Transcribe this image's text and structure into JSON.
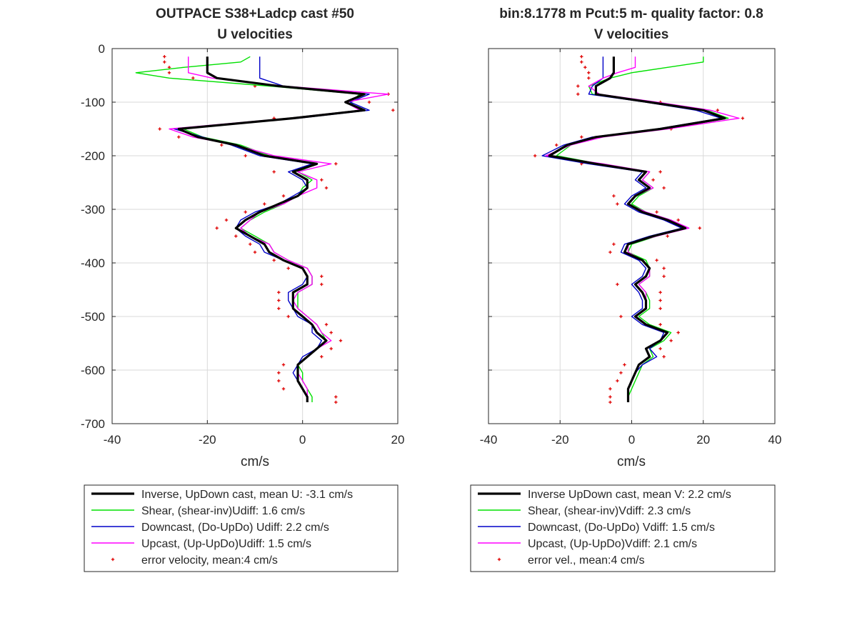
{
  "figure": {
    "left_title_line1": "OUTPACE S38+Ladcp cast #50",
    "left_title_line2": "U velocities",
    "right_title_line1": "bin:8.1778 m  Pcut:5 m- quality factor:  0.8",
    "right_title_line2": "V velocities"
  },
  "colors": {
    "inverse": "#000000",
    "shear": "#00e000",
    "downcast": "#0000c8",
    "upcast": "#ff00ff",
    "error": "#e00000",
    "grid": "#d9d9d9",
    "axes": "#262626"
  },
  "chart_data": [
    {
      "type": "line",
      "title": "OUTPACE S38+Ladcp cast #50 U velocities",
      "xlabel": "cm/s",
      "ylabel": "",
      "xlim": [
        -40,
        20
      ],
      "ylim": [
        -700,
        0
      ],
      "xticks": [
        -40,
        -20,
        0,
        20
      ],
      "yticks": [
        0,
        -100,
        -200,
        -300,
        -400,
        -500,
        -600,
        -700
      ],
      "grid": true,
      "legend_position": "below",
      "depth": [
        -15,
        -25,
        -35,
        -45,
        -55,
        -70,
        -85,
        -100,
        -115,
        -130,
        -150,
        -165,
        -180,
        -200,
        -215,
        -230,
        -245,
        -260,
        -275,
        -290,
        -305,
        -320,
        -335,
        -350,
        -365,
        -380,
        -395,
        -410,
        -425,
        -440,
        -455,
        -470,
        -485,
        -500,
        -515,
        -530,
        -545,
        -560,
        -575,
        -590,
        -605,
        -620,
        -635,
        -650,
        -660
      ],
      "series": [
        {
          "name": "Inverse, UpDown cast, mean U:  -3.1 cm/s",
          "values": [
            -20,
            -20,
            -20,
            -20,
            -18,
            -5,
            13,
            9,
            13,
            -2,
            -26,
            -22,
            -14,
            -8,
            3,
            -2,
            1,
            1,
            -1,
            -5,
            -9,
            -12,
            -14,
            -11,
            -8,
            -7,
            -4,
            0,
            1,
            1,
            -2,
            -2,
            -2,
            0,
            2,
            3,
            5,
            3,
            1,
            -1,
            -1,
            -1,
            0,
            1,
            1
          ]
        },
        {
          "name": "Shear, (shear-inv)Udiff:  1.6 cm/s",
          "values": [
            -11,
            -13,
            -25,
            -35,
            -28,
            -7,
            12,
            10,
            12,
            -3,
            -25,
            -21,
            -13,
            -7,
            3,
            -1,
            2,
            0,
            -1,
            -4,
            -8,
            -11,
            -13,
            -10,
            -7,
            -6,
            -3,
            1,
            2,
            2,
            -1,
            -1,
            -1,
            1,
            3,
            4,
            5,
            3,
            1,
            -1,
            0,
            0,
            1,
            2,
            2
          ]
        },
        {
          "name": "Downcast, (Do-UpDo) Udiff:  2.2 cm/s",
          "values": [
            -9,
            -9,
            -9,
            -9,
            -9,
            -4,
            14,
            10,
            14,
            -1,
            -27,
            -21,
            -15,
            -9,
            2,
            -3,
            0,
            1,
            -2,
            -5,
            -10,
            -13,
            -14,
            -12,
            -9,
            -8,
            -4,
            0,
            1,
            0,
            -3,
            -3,
            -2,
            -1,
            2,
            2,
            4,
            3,
            0,
            -1,
            -2,
            -1,
            0,
            1,
            1
          ]
        },
        {
          "name": "Upcast, (Up-UpDo)Udiff:  1.5 cm/s",
          "values": [
            -24,
            -24,
            -24,
            -24,
            -19,
            -4,
            18,
            9,
            12,
            -3,
            -28,
            -23,
            -14,
            -6,
            6,
            -1,
            3,
            3,
            -1,
            -4,
            -9,
            -11,
            -13,
            -11,
            -7,
            -6,
            -3,
            1,
            2,
            2,
            -1,
            -2,
            -1,
            1,
            3,
            4,
            6,
            3,
            1,
            -1,
            -1,
            0,
            1,
            1,
            1
          ]
        },
        {
          "name": "error velocity, mean:4 cm/s",
          "values": [
            -29,
            -29,
            -28,
            -28,
            -23,
            -10,
            18,
            14,
            19,
            -6,
            -30,
            -26,
            -17,
            -12,
            7,
            -6,
            4,
            5,
            -4,
            -8,
            -12,
            -16,
            -18,
            -14,
            -11,
            -10,
            -6,
            -3,
            4,
            4,
            -5,
            -5,
            -5,
            -3,
            5,
            6,
            8,
            6,
            4,
            -4,
            -5,
            -5,
            -4,
            7,
            7
          ]
        }
      ]
    },
    {
      "type": "line",
      "title": "bin:8.1778 m  Pcut:5 m- quality factor:  0.8 V velocities",
      "xlabel": "cm/s",
      "ylabel": "",
      "xlim": [
        -40,
        40
      ],
      "ylim": [
        -700,
        0
      ],
      "xticks": [
        -40,
        -20,
        0,
        20,
        40
      ],
      "yticks": [
        0,
        -100,
        -200,
        -300,
        -400,
        -500,
        -600,
        -700
      ],
      "grid": true,
      "legend_position": "below",
      "depth": [
        -15,
        -25,
        -35,
        -45,
        -55,
        -70,
        -85,
        -100,
        -115,
        -130,
        -150,
        -165,
        -180,
        -200,
        -215,
        -230,
        -245,
        -260,
        -275,
        -290,
        -305,
        -320,
        -335,
        -350,
        -365,
        -380,
        -395,
        -410,
        -425,
        -440,
        -455,
        -470,
        -485,
        -500,
        -515,
        -530,
        -545,
        -560,
        -575,
        -590,
        -605,
        -620,
        -635,
        -650,
        -660
      ],
      "series": [
        {
          "name": "Inverse UpDown cast, mean V:  2.2 cm/s",
          "values": [
            -5,
            -5,
            -5,
            -5,
            -6,
            -10,
            -10,
            5,
            20,
            26,
            8,
            -10,
            -18,
            -23,
            -10,
            4,
            2,
            5,
            1,
            -1,
            3,
            10,
            15,
            6,
            -1,
            -2,
            3,
            5,
            4,
            1,
            3,
            4,
            4,
            1,
            4,
            10,
            8,
            4,
            5,
            2,
            1,
            0,
            -1,
            -1,
            -1
          ]
        },
        {
          "name": "Shear, (shear-inv)Vdiff:  2.3 cm/s",
          "values": [
            20,
            20,
            10,
            0,
            -6,
            -12,
            -11,
            6,
            21,
            27,
            9,
            -9,
            -17,
            -21,
            -9,
            5,
            3,
            6,
            2,
            0,
            4,
            11,
            15,
            7,
            0,
            -1,
            4,
            5,
            5,
            2,
            4,
            5,
            5,
            2,
            5,
            11,
            9,
            5,
            6,
            3,
            2,
            1,
            0,
            -1,
            -1
          ]
        },
        {
          "name": "Downcast, (Do-UpDo) Vdiff:  1.5 cm/s",
          "values": [
            -8,
            -8,
            -8,
            -8,
            -8,
            -11,
            -12,
            4,
            18,
            25,
            7,
            -11,
            -19,
            -25,
            -12,
            3,
            1,
            4,
            0,
            -2,
            2,
            9,
            14,
            5,
            -2,
            -3,
            2,
            4,
            3,
            0,
            2,
            3,
            3,
            0,
            3,
            9,
            8,
            5,
            7,
            3,
            1,
            0,
            -1,
            -1,
            -1
          ]
        },
        {
          "name": "Upcast, (Up-UpDo)Vdiff:  2.1 cm/s",
          "values": [
            1,
            1,
            1,
            -4,
            -8,
            -12,
            -9,
            7,
            22,
            30,
            10,
            -8,
            -17,
            -24,
            -8,
            5,
            3,
            6,
            1,
            -1,
            4,
            11,
            16,
            7,
            -1,
            -1,
            3,
            5,
            5,
            2,
            4,
            4,
            4,
            1,
            4,
            10,
            8,
            4,
            5,
            2,
            1,
            0,
            -1,
            -1,
            -1
          ]
        },
        {
          "name": "error vel., mean:4 cm/s",
          "values": [
            -14,
            -14,
            -13,
            -12,
            -12,
            -15,
            -15,
            8,
            24,
            31,
            11,
            -14,
            -21,
            -27,
            -14,
            8,
            6,
            9,
            -5,
            -4,
            7,
            13,
            19,
            10,
            -5,
            -6,
            7,
            9,
            9,
            -4,
            8,
            8,
            8,
            -3,
            8,
            13,
            11,
            8,
            9,
            -2,
            -3,
            -4,
            -6,
            -6,
            -6
          ]
        }
      ]
    }
  ]
}
